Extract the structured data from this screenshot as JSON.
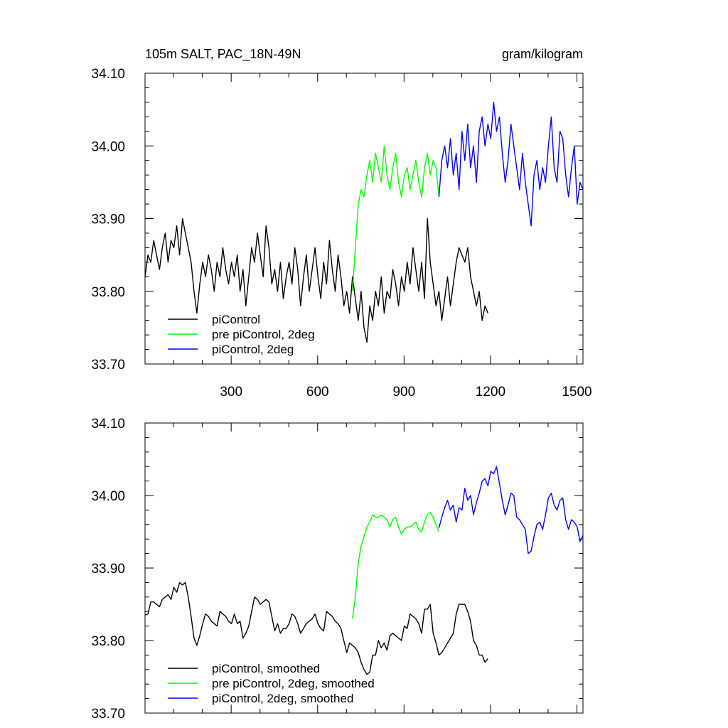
{
  "chart_data": [
    {
      "type": "line",
      "title": "105m SALT, PAC_18N-49N",
      "units": "gram/kilogram",
      "xlim": [
        1,
        1521
      ],
      "ylim": [
        33.7,
        34.1
      ],
      "xticks": [
        300,
        600,
        900,
        1200,
        1500
      ],
      "xtick_labels": [
        "300",
        "600",
        "900",
        "1200",
        "1500"
      ],
      "yticks": [
        33.7,
        33.8,
        33.9,
        34.0,
        34.1
      ],
      "ytick_labels": [
        "33.70",
        "33.80",
        "33.90",
        "34.00",
        "34.10"
      ],
      "legend_placement": "bottom-left",
      "series": [
        {
          "name": "piControl",
          "color": "#000000",
          "x_start": 1,
          "x_step": 10,
          "values": [
            33.82,
            33.85,
            33.84,
            33.87,
            33.85,
            33.83,
            33.86,
            33.88,
            33.84,
            33.87,
            33.86,
            33.89,
            33.85,
            33.9,
            33.88,
            33.86,
            33.84,
            33.8,
            33.77,
            33.81,
            33.84,
            33.82,
            33.85,
            33.83,
            33.8,
            33.84,
            33.82,
            33.86,
            33.83,
            33.81,
            33.84,
            33.82,
            33.85,
            33.8,
            33.83,
            33.78,
            33.82,
            33.86,
            33.84,
            33.88,
            33.85,
            33.82,
            33.89,
            33.86,
            33.81,
            33.83,
            33.8,
            33.84,
            33.79,
            33.82,
            33.84,
            33.81,
            33.86,
            33.83,
            33.78,
            33.82,
            33.85,
            33.8,
            33.83,
            33.86,
            33.82,
            33.79,
            33.84,
            33.81,
            33.87,
            33.83,
            33.8,
            33.85,
            33.82,
            33.78,
            33.8,
            33.77,
            33.82,
            33.79,
            33.76,
            33.8,
            33.75,
            33.73,
            33.78,
            33.76,
            33.8,
            33.78,
            33.82,
            33.77,
            33.8,
            33.79,
            33.83,
            33.81,
            33.78,
            33.82,
            33.8,
            33.84,
            33.81,
            33.86,
            33.83,
            33.8,
            33.84,
            33.79,
            33.9,
            33.84,
            33.81,
            33.78,
            33.8,
            33.76,
            33.79,
            33.82,
            33.78,
            33.81,
            33.84,
            33.86,
            33.85,
            33.84,
            33.86,
            33.82,
            33.8,
            33.78,
            33.8,
            33.76,
            33.78,
            33.77
          ]
        },
        {
          "name": "pre piControl, 2deg",
          "color": "#00ff00",
          "x_start": 721,
          "x_step": 10,
          "values": [
            33.8,
            33.86,
            33.92,
            33.94,
            33.93,
            33.96,
            33.98,
            33.95,
            33.99,
            33.97,
            33.95,
            34.0,
            33.96,
            33.94,
            33.97,
            33.99,
            33.95,
            33.93,
            33.96,
            33.97,
            33.94,
            33.96,
            33.98,
            33.95,
            33.93,
            33.97,
            33.99,
            33.96,
            33.98,
            33.97,
            33.93
          ]
        },
        {
          "name": "piControl, 2deg",
          "color": "#0000ff",
          "x_start": 1021,
          "x_step": 10,
          "values": [
            33.93,
            33.98,
            34.0,
            33.97,
            34.01,
            33.96,
            33.99,
            33.94,
            34.02,
            33.98,
            34.03,
            33.97,
            34.0,
            33.95,
            34.02,
            34.04,
            34.0,
            34.03,
            34.01,
            34.06,
            34.02,
            34.04,
            33.99,
            33.95,
            33.98,
            34.03,
            34.0,
            33.97,
            33.94,
            33.99,
            33.95,
            33.92,
            33.89,
            33.96,
            33.98,
            33.94,
            33.97,
            33.95,
            34.0,
            34.04,
            33.97,
            33.95,
            34.02,
            34.01,
            33.96,
            33.93,
            33.97,
            34.0,
            33.92,
            33.95,
            33.94
          ]
        }
      ]
    },
    {
      "type": "line",
      "xlim": [
        1,
        1521
      ],
      "ylim": [
        33.7,
        34.1
      ],
      "ytick_labels": [
        "33.70",
        "33.80",
        "33.90",
        "34.00",
        "34.10"
      ],
      "legend_placement": "bottom-left",
      "smoothing": "running mean of panel-1 series",
      "series": [
        {
          "name": "piControl, smoothed",
          "color": "#000000",
          "source": 0
        },
        {
          "name": "pre piControl, 2deg, smoothed",
          "color": "#00ff00",
          "source": 1
        },
        {
          "name": "piControl, 2deg, smoothed",
          "color": "#0000ff",
          "source": 2
        }
      ]
    }
  ]
}
